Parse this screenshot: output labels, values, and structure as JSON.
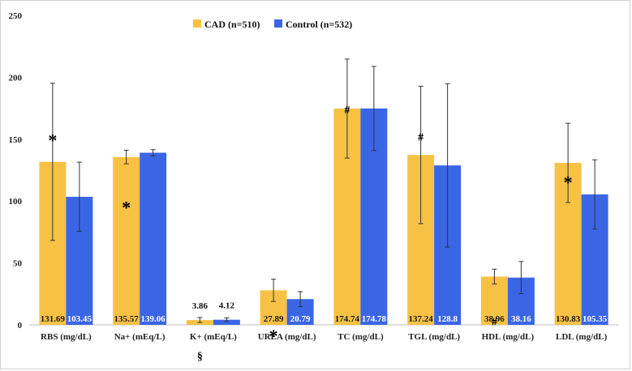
{
  "chart_data": {
    "type": "bar",
    "title": "",
    "xlabel": "",
    "ylabel": "",
    "ylim": [
      0,
      250
    ],
    "yticks": [
      0,
      50,
      100,
      150,
      200,
      250
    ],
    "grid": false,
    "legend_position": "top",
    "categories": [
      "RBS (mg/dL)",
      "Na+ (mEq/L)",
      "K+ (mEq/L)",
      "UREA (mg/dL)",
      "TC (mg/dL)",
      "TGL (mg/dL)",
      "HDL (mg/dL)",
      "LDL (mg/dL)"
    ],
    "series": [
      {
        "name": "CAD (n=510)",
        "color": "#f7c244",
        "values": [
          131.69,
          135.57,
          3.86,
          27.89,
          174.74,
          137.24,
          38.96,
          130.83
        ],
        "labels": [
          "131.69",
          "135.57",
          "3.86",
          "27.89",
          "174.74",
          "137.24",
          "38.96",
          "130.83"
        ],
        "error": [
          63.5,
          5.5,
          2.0,
          9.0,
          40.0,
          55.5,
          6.0,
          32.0
        ]
      },
      {
        "name": "Control (n=532)",
        "color": "#3a66e6",
        "values": [
          103.45,
          139.06,
          4.12,
          20.79,
          174.78,
          128.8,
          38.16,
          105.35
        ],
        "labels": [
          "103.45",
          "139.06",
          "4.12",
          "20.79",
          "174.78",
          "128.8",
          "38.16",
          "105.35"
        ],
        "error": [
          28.0,
          2.5,
          1.5,
          6.0,
          34.0,
          66.0,
          13.0,
          28.0
        ]
      }
    ],
    "annotations": [
      {
        "category": 0,
        "text": "*",
        "value": 152
      },
      {
        "category": 1,
        "text": "*",
        "value": 98
      },
      {
        "category": 2,
        "text": "§",
        "value": -25
      },
      {
        "category": 3,
        "text": "*",
        "value": -6
      },
      {
        "category": 4,
        "text": "#",
        "value": 174
      },
      {
        "category": 5,
        "text": "#",
        "value": 152
      },
      {
        "category": 6,
        "text": "#",
        "value": 3
      },
      {
        "category": 7,
        "text": "*",
        "value": 118
      }
    ]
  }
}
